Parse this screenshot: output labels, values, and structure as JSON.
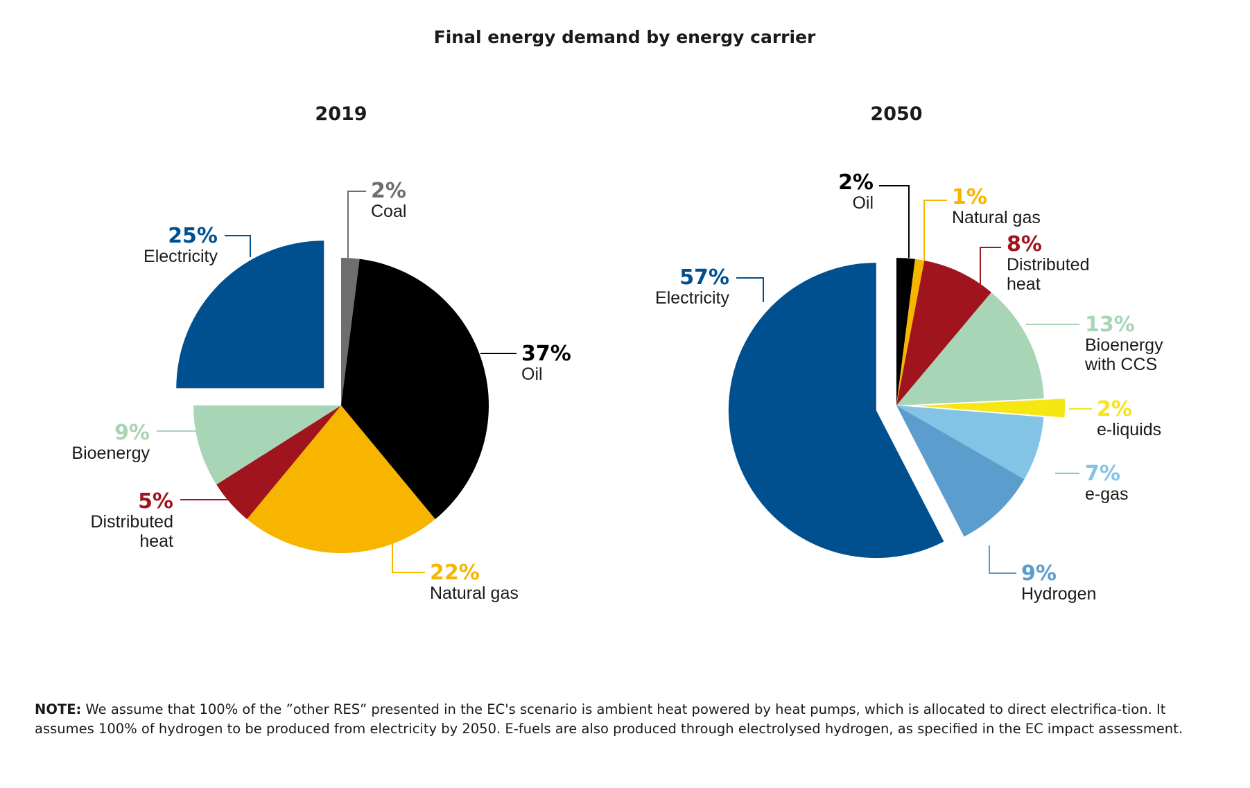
{
  "title": "Final energy demand by energy carrier",
  "note": {
    "label": "NOTE:",
    "text": " We assume that 100% of the ”other RES” presented in the EC's scenario is ambient heat powered by heat pumps, which is allocated to direct electrifica-tion. It assumes 100% of hydrogen to be produced from electricity by 2050. E-fuels are also produced through electrolysed hydrogen, as specified in the EC impact assessment."
  },
  "chart_data": [
    {
      "type": "pie",
      "title": "2019",
      "slices": [
        {
          "name": "Coal",
          "pct_label": "2%",
          "value": 2,
          "color": "#6e6e6e"
        },
        {
          "name": "Oil",
          "pct_label": "37%",
          "value": 37,
          "color": "#000000"
        },
        {
          "name": "Natural gas",
          "pct_label": "22%",
          "value": 22,
          "color": "#f7b500"
        },
        {
          "name": "Distributed heat",
          "pct_label": "5%",
          "value": 5,
          "color": "#a0141e"
        },
        {
          "name": "Bioenergy",
          "pct_label": "9%",
          "value": 9,
          "color": "#a8d5b5"
        },
        {
          "name": "Electricity",
          "pct_label": "25%",
          "value": 25,
          "color": "#00508f",
          "exploded": true
        }
      ]
    },
    {
      "type": "pie",
      "title": "2050",
      "slices": [
        {
          "name": "Oil",
          "pct_label": "2%",
          "value": 2,
          "color": "#000000"
        },
        {
          "name": "Natural gas",
          "pct_label": "1%",
          "value": 1,
          "color": "#f7b500"
        },
        {
          "name": "Distributed heat",
          "pct_label": "8%",
          "value": 8,
          "color": "#a0141e"
        },
        {
          "name": "Bioenergy with CCS",
          "pct_label": "13%",
          "value": 13,
          "color": "#a8d5b5"
        },
        {
          "name": "e-liquids",
          "pct_label": "2%",
          "value": 2,
          "color": "#f5e614",
          "exploded": true
        },
        {
          "name": "e-gas",
          "pct_label": "7%",
          "value": 7,
          "color": "#83c3e6"
        },
        {
          "name": "Hydrogen",
          "pct_label": "9%",
          "value": 9,
          "color": "#5b9dcc"
        },
        {
          "name": "Electricity",
          "pct_label": "57%",
          "value": 57,
          "color": "#00508f",
          "exploded": true
        }
      ]
    }
  ]
}
